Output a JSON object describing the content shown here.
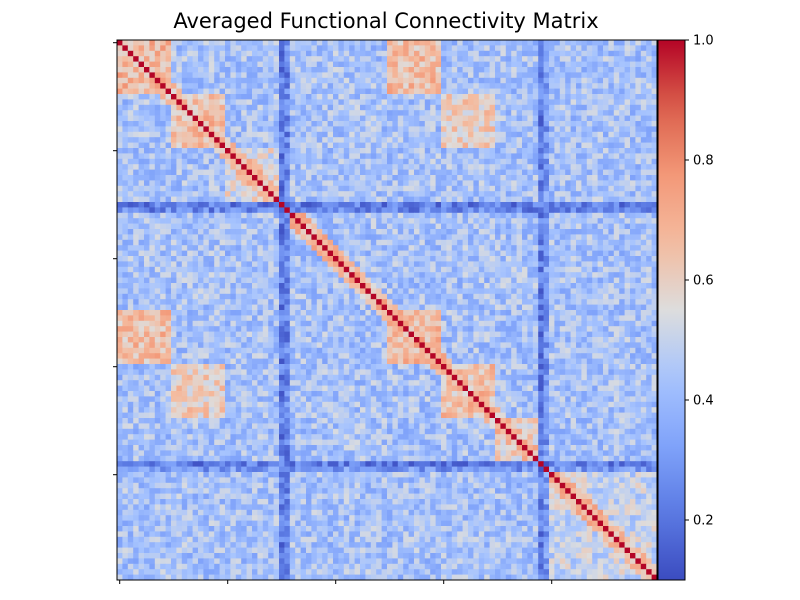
{
  "chart_data": {
    "type": "heatmap",
    "title": "Averaged Functional Connectivity Matrix",
    "n": 100,
    "colormap": "coolwarm",
    "value_range": [
      0.1,
      1.0
    ],
    "diagonal_value": 1.0,
    "colorbar": {
      "placement": "right",
      "ticks": [
        1.0,
        0.8,
        0.6,
        0.4,
        0.2
      ],
      "tick_labels": [
        "1.0",
        "0.8",
        "0.6",
        "0.4",
        "0.2"
      ]
    },
    "axes": {
      "x_tick_count": 6,
      "y_tick_count": 6,
      "x_tick_labels_shown": false,
      "y_tick_labels_shown": false
    },
    "modules": [
      {
        "start": 0,
        "end": 10,
        "value": 0.68
      },
      {
        "start": 10,
        "end": 20,
        "value": 0.63
      },
      {
        "start": 20,
        "end": 30,
        "value": 0.55
      },
      {
        "start": 50,
        "end": 60,
        "value": 0.68
      },
      {
        "start": 60,
        "end": 70,
        "value": 0.64
      },
      {
        "start": 70,
        "end": 78,
        "value": 0.6
      },
      {
        "start": 78,
        "end": 100,
        "value": 0.5
      }
    ],
    "off_diagonal_blocks": [
      {
        "rows": [
          0,
          10
        ],
        "cols": [
          50,
          60
        ],
        "value": 0.66
      },
      {
        "rows": [
          10,
          20
        ],
        "cols": [
          60,
          70
        ],
        "value": 0.6
      }
    ],
    "low_bands": [
      {
        "index": 30,
        "value": 0.22
      },
      {
        "index": 31,
        "value": 0.25
      },
      {
        "index": 78,
        "value": 0.22
      },
      {
        "index": 79,
        "value": 0.3
      }
    ],
    "background_value": 0.43
  }
}
